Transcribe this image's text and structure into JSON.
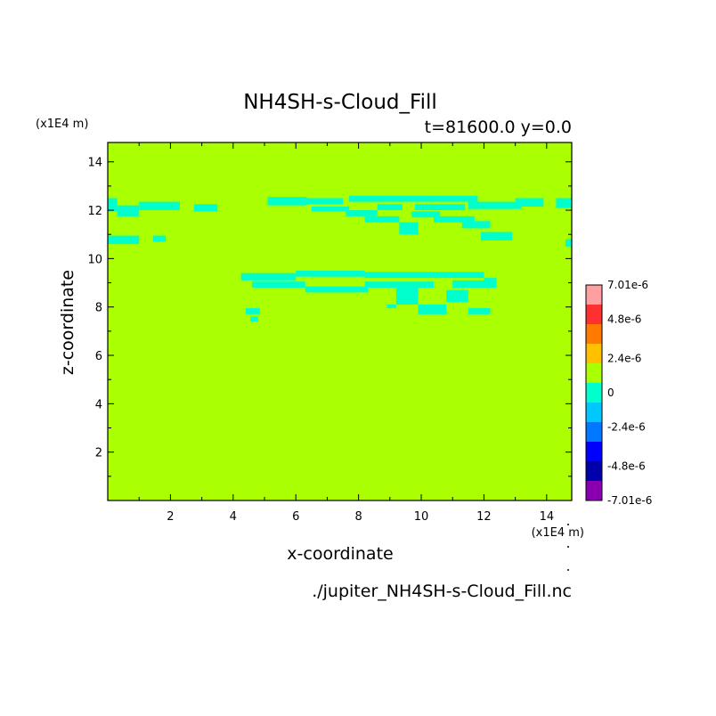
{
  "chart_data": {
    "type": "heatmap",
    "title": "NH4SH-s-Cloud_Fill",
    "subtitle": "t=81600.0 y=0.0",
    "xlabel": "x-coordinate",
    "ylabel": "z-coordinate",
    "x_scale_label": "(x1E4 m)",
    "y_scale_label": "(x1E4 m)",
    "source_file": "./jupiter_NH4SH-s-Cloud_Fill.nc",
    "xlim": [
      0.0,
      14.8
    ],
    "ylim": [
      0.0,
      14.8
    ],
    "x_ticks": [
      2,
      4,
      6,
      8,
      10,
      12,
      14
    ],
    "y_ticks": [
      2,
      4,
      6,
      8,
      10,
      12,
      14
    ],
    "x_tick_labels": [
      "2",
      "4",
      "6",
      "8",
      "10",
      "12",
      "14"
    ],
    "y_tick_labels": [
      "2",
      "4",
      "6",
      "8",
      "10",
      "12",
      "14"
    ],
    "colorbar": {
      "labels": [
        "7.01e-6",
        "4.8e-6",
        "2.4e-6",
        "0",
        "-2.4e-6",
        "-4.8e-6",
        "-7.01e-6"
      ],
      "colors": [
        "#ffa0a0",
        "#ff3030",
        "#ff7a00",
        "#ffc000",
        "#aaff00",
        "#00ffcc",
        "#00c8ff",
        "#0078ff",
        "#0000ff",
        "#0000aa",
        "#8a00b0"
      ]
    },
    "background_color": "#aaff00",
    "field_color": "#00ffcc",
    "negative_regions": [
      {
        "x0": 0.0,
        "x1": 0.3,
        "z0": 11.95,
        "z1": 12.5
      },
      {
        "x0": 0.3,
        "x1": 1.0,
        "z0": 11.75,
        "z1": 12.2
      },
      {
        "x0": 1.0,
        "x1": 2.3,
        "z0": 12.0,
        "z1": 12.35
      },
      {
        "x0": 0.0,
        "x1": 1.0,
        "z0": 10.6,
        "z1": 10.95
      },
      {
        "x0": 1.45,
        "x1": 1.85,
        "z0": 10.7,
        "z1": 10.95
      },
      {
        "x0": 2.75,
        "x1": 3.5,
        "z0": 11.95,
        "z1": 12.25
      },
      {
        "x0": 5.1,
        "x1": 6.35,
        "z0": 12.2,
        "z1": 12.55
      },
      {
        "x0": 6.35,
        "x1": 7.5,
        "z0": 12.25,
        "z1": 12.5
      },
      {
        "x0": 6.5,
        "x1": 7.7,
        "z0": 11.95,
        "z1": 12.15
      },
      {
        "x0": 7.7,
        "x1": 9.0,
        "z0": 12.35,
        "z1": 12.6
      },
      {
        "x0": 7.6,
        "x1": 8.6,
        "z0": 11.75,
        "z1": 12.0
      },
      {
        "x0": 8.2,
        "x1": 9.3,
        "z0": 11.5,
        "z1": 11.75
      },
      {
        "x0": 8.6,
        "x1": 9.4,
        "z0": 12.0,
        "z1": 12.25
      },
      {
        "x0": 9.0,
        "x1": 10.5,
        "z0": 12.35,
        "z1": 12.6
      },
      {
        "x0": 9.3,
        "x1": 9.9,
        "z0": 11.0,
        "z1": 11.5
      },
      {
        "x0": 9.7,
        "x1": 10.6,
        "z0": 11.7,
        "z1": 11.95
      },
      {
        "x0": 9.8,
        "x1": 11.4,
        "z0": 12.0,
        "z1": 12.25
      },
      {
        "x0": 10.4,
        "x1": 11.7,
        "z0": 11.5,
        "z1": 11.75
      },
      {
        "x0": 10.5,
        "x1": 11.8,
        "z0": 12.35,
        "z1": 12.6
      },
      {
        "x0": 11.3,
        "x1": 12.2,
        "z0": 11.25,
        "z1": 11.55
      },
      {
        "x0": 11.9,
        "x1": 12.9,
        "z0": 10.75,
        "z1": 11.1
      },
      {
        "x0": 11.5,
        "x1": 13.2,
        "z0": 12.05,
        "z1": 12.35
      },
      {
        "x0": 13.0,
        "x1": 13.9,
        "z0": 12.15,
        "z1": 12.5
      },
      {
        "x0": 14.3,
        "x1": 14.8,
        "z0": 12.1,
        "z1": 12.5
      },
      {
        "x0": 14.6,
        "x1": 14.8,
        "z0": 10.5,
        "z1": 10.8
      },
      {
        "x0": 4.25,
        "x1": 6.0,
        "z0": 9.1,
        "z1": 9.4
      },
      {
        "x0": 6.0,
        "x1": 8.2,
        "z0": 9.25,
        "z1": 9.5
      },
      {
        "x0": 4.6,
        "x1": 6.3,
        "z0": 8.8,
        "z1": 9.05
      },
      {
        "x0": 6.3,
        "x1": 8.3,
        "z0": 8.6,
        "z1": 8.85
      },
      {
        "x0": 8.2,
        "x1": 10.4,
        "z0": 8.8,
        "z1": 9.05
      },
      {
        "x0": 8.2,
        "x1": 12.0,
        "z0": 9.2,
        "z1": 9.45
      },
      {
        "x0": 9.2,
        "x1": 9.9,
        "z0": 8.1,
        "z1": 8.9
      },
      {
        "x0": 9.9,
        "x1": 10.8,
        "z0": 7.7,
        "z1": 8.1
      },
      {
        "x0": 10.8,
        "x1": 11.5,
        "z0": 8.2,
        "z1": 8.7
      },
      {
        "x0": 11.0,
        "x1": 12.4,
        "z0": 8.8,
        "z1": 9.1
      },
      {
        "x0": 12.0,
        "x1": 12.4,
        "z0": 9.0,
        "z1": 9.2
      },
      {
        "x0": 8.9,
        "x1": 9.2,
        "z0": 7.95,
        "z1": 8.1
      },
      {
        "x0": 11.5,
        "x1": 12.2,
        "z0": 7.7,
        "z1": 7.95
      },
      {
        "x0": 4.4,
        "x1": 4.85,
        "z0": 7.7,
        "z1": 7.95
      },
      {
        "x0": 4.55,
        "x1": 4.8,
        "z0": 7.4,
        "z1": 7.6
      }
    ]
  }
}
